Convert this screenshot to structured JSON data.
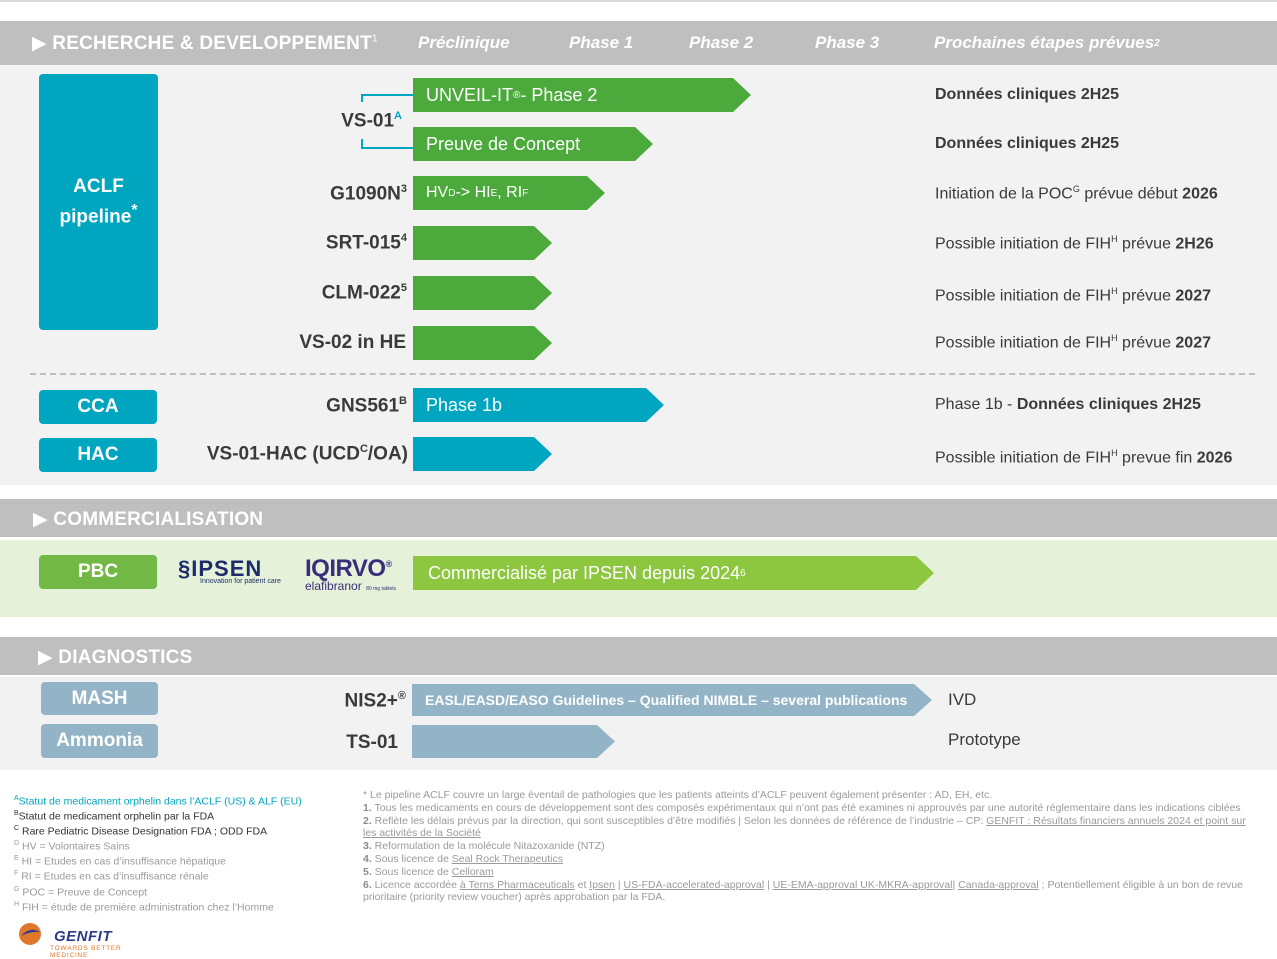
{
  "sections": {
    "rd": {
      "title": "RECHERCHE & DEVELOPPEMENT",
      "title_sup": "1",
      "arrow_glyph": "▶"
    },
    "commercial": {
      "title": "COMMERCIALISATION",
      "arrow_glyph": "▶"
    },
    "diagnostics": {
      "title": "DIAGNOSTICS",
      "arrow_glyph": "▶"
    }
  },
  "phases": {
    "preclinical": "Préclinique",
    "phase1": "Phase 1",
    "phase2": "Phase 2",
    "phase3": "Phase 3",
    "next_steps": "Prochaines étapes prévues",
    "next_steps_sup": "2"
  },
  "categories": {
    "aclf": "ACLF pipeline",
    "aclf_sup": "*",
    "cca": "CCA",
    "hac": "HAC",
    "pbc": "PBC",
    "mash": "MASH",
    "ammonia": "Ammonia"
  },
  "rows": {
    "vs01": {
      "product": "VS-01",
      "product_sup": "A",
      "bar1": "UNVEIL-IT",
      "bar1_sup": "®",
      "bar1_suffix": " - Phase 2",
      "next1": "Données cliniques 2H25",
      "bar2": "Preuve de Concept",
      "next2": "Données cliniques 2H25"
    },
    "g1090n": {
      "product": "G1090N",
      "product_sup": "3",
      "bar_a": "HV",
      "bar_a_sup": "D",
      "bar_b": " -> HI",
      "bar_b_sup": "E",
      "bar_c": ", RI",
      "bar_c_sup": "F",
      "next_a": "Initiation de la POC",
      "next_a_sup": "G",
      "next_b": " prévue début ",
      "next_bold": "2026"
    },
    "srt015": {
      "product": "SRT-015",
      "product_sup": "4",
      "next_a": "Possible initiation de FIH",
      "next_a_sup": "H",
      "next_b": " prévue ",
      "next_bold": "2H26"
    },
    "clm022": {
      "product": "CLM-022",
      "product_sup": "5",
      "next_a": "Possible initiation de FIH",
      "next_a_sup": "H",
      "next_b": "  prévue ",
      "next_bold": "2027"
    },
    "vs02": {
      "product": "VS-02 in HE",
      "next_a": "Possible initiation de FIH",
      "next_a_sup": "H",
      "next_b": "  prévue ",
      "next_bold": "2027"
    },
    "gns561": {
      "product": "GNS561",
      "product_sup": "B",
      "bar": "Phase 1b",
      "next_a": "Phase 1b - ",
      "next_bold": "Données cliniques 2H25"
    },
    "vs01hac": {
      "product_a": "VS-01-HAC (UCD",
      "product_sup": "C",
      "product_b": "/OA)",
      "next_a": "Possible initiation de FIH",
      "next_a_sup": "H",
      "next_b": "  prevue fin ",
      "next_bold": "2026"
    },
    "pbc": {
      "ipsen": "IPSEN",
      "ipsen_tag": "Innovation for patient care",
      "iqirvo": "IQIRVO",
      "iqirvo_reg": "®",
      "elafibranor": "elafibranor",
      "dose": "80 mg tablets",
      "bar": "Commercialisé par IPSEN depuis 2024",
      "bar_sup": "6"
    },
    "nis2": {
      "product": "NIS2+",
      "product_sup": "®",
      "bar": "EASL/EASD/EASO Guidelines – Qualified NIMBLE – several publications",
      "next": "IVD"
    },
    "ts01": {
      "product": "TS-01",
      "next": "Prototype"
    }
  },
  "footnotes_left": {
    "a": {
      "sup": "A",
      "text": "Statut de medicament orphelin dans l’ACLF (US) & ALF (EU)"
    },
    "b": {
      "sup": "B",
      "text": "Statut de medicament orphelin par la FDA"
    },
    "c": {
      "sup": "C",
      "text": " Rare Pediatric Disease Designation FDA ; ODD FDA"
    },
    "d": {
      "sup": "D",
      "text": " HV = Volontaires Sains"
    },
    "e": {
      "sup": "E",
      "text": " HI = Etudes en cas d’insuffisance hépatique"
    },
    "f": {
      "sup": "F",
      "text": " RI = Etudes en cas d’insuffisance rénale"
    },
    "g": {
      "sup": "G",
      "text": " POC = Preuve de Concept"
    },
    "h": {
      "sup": "H",
      "text": " FIH = étude de première administration chez l’Homme"
    }
  },
  "footnotes_right": {
    "star": "* Le pipeline ACLF couvre un large éventail de pathologies que les patients atteints d’ACLF peuvent également présenter : AD, EH, etc.",
    "n1_num": "1.",
    "n1": " Tous les medicaments en cours de développement sont des composés expérimentaux qui n’ont pas été examines ni approuvés par une autorité réglementaire dans les indications ciblées",
    "n2_num": "2.",
    "n2": " Reflète les délais prévus par la direction, qui sont susceptibles d’être modifiés | Selon les données de référence de l’industrie – CP: ",
    "n2_link": "GENFIT : Résultats financiers annuels 2024 et point sur les activités de la Société",
    "n3_num": "3.",
    "n3": " Reformulation de la molécule Nitazoxanide (NTZ)",
    "n4_num": "4.",
    "n4": " Sous licence de ",
    "n4_link": "Seal Rock Therapeutics",
    "n5_num": "5.",
    "n5": " Sous licence de ",
    "n5_link": "Celloram",
    "n6_num": "6.",
    "n6_a": " Licence accordée ",
    "n6_l1": "à Terns Pharmaceuticals",
    "n6_b": " et ",
    "n6_l2": "Ipsen",
    "n6_c": "  |  ",
    "n6_l3": "US-FDA-accelerated-approval",
    "n6_d": "  |  ",
    "n6_l4": "UE-EMA-approval UK-MKRA-approval",
    "n6_e": "|  ",
    "n6_l5": "Canada-approval",
    "n6_f": " ; Potentiellement éligible à un bon de revue prioritaire (priority review voucher) après approbation par la FDA."
  },
  "brand": {
    "genfit": "GENFIT",
    "tagline": "Towards Better Medicine"
  },
  "colors": {
    "teal": "#00a5bf",
    "green_dark": "#4caa3c",
    "green_light": "#8dc63f",
    "grey_blue": "#93b4c6",
    "header_grey": "#bfbfbf"
  }
}
